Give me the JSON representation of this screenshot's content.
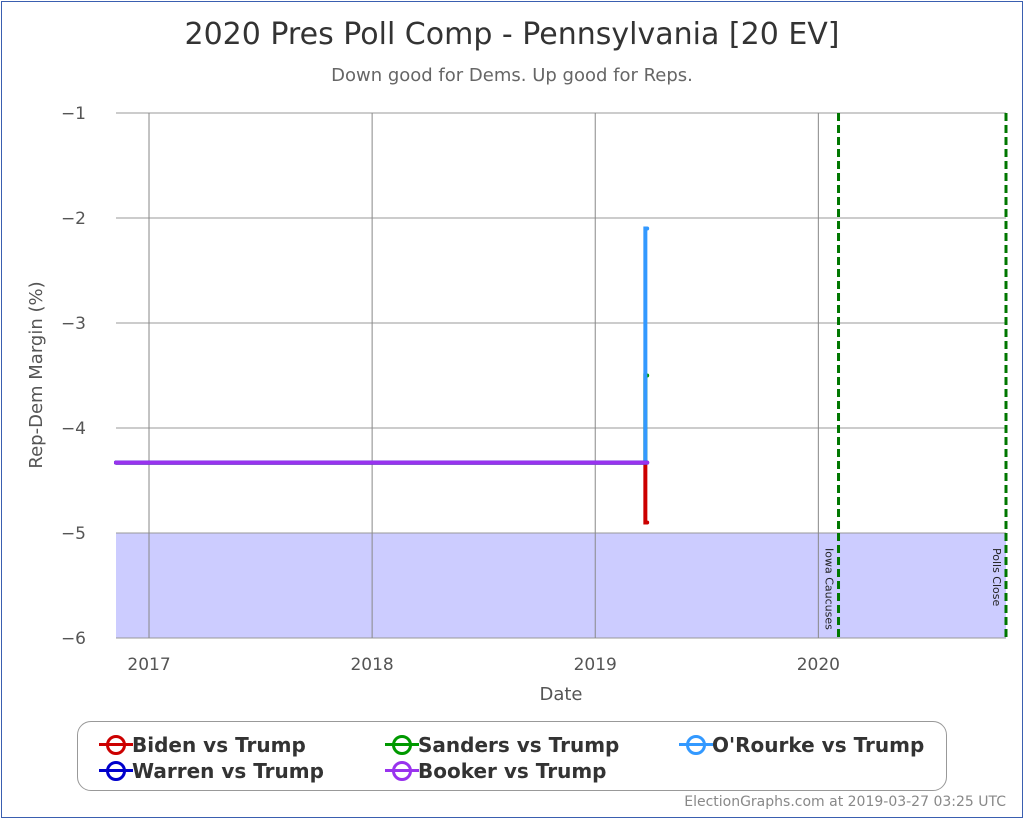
{
  "chart_data": {
    "type": "line",
    "title": "2020 Pres Poll Comp - Pennsylvania [20 EV]",
    "subtitle": "Down good for Dems. Up good for Reps.",
    "xlabel": "Date",
    "ylabel": "Rep-Dem Margin (%)",
    "xlim": [
      "2016-11-08",
      "2020-11-03"
    ],
    "ylim": [
      -6,
      -1
    ],
    "xticks": [
      "2017",
      "2018",
      "2019",
      "2020"
    ],
    "yticks": [
      -1,
      -2,
      -3,
      -4,
      -5,
      -6
    ],
    "grid": true,
    "shaded_region": {
      "from": -6,
      "to": -5,
      "color": "#ccccff"
    },
    "events": [
      {
        "date": "2020-02-03",
        "label": "Iowa Caucuses"
      },
      {
        "date": "2020-11-03",
        "label": "Polls Close"
      }
    ],
    "series": [
      {
        "name": "Biden vs Trump",
        "color": "#cc0000",
        "points": [
          [
            "2016-11-08",
            -4.33
          ],
          [
            "2019-03-24",
            -4.33
          ],
          [
            "2019-03-24",
            -4.9
          ],
          [
            "2019-03-27",
            -4.9
          ]
        ]
      },
      {
        "name": "Sanders vs Trump",
        "color": "#009900",
        "points": [
          [
            "2016-11-08",
            -4.33
          ],
          [
            "2019-03-24",
            -4.33
          ],
          [
            "2019-03-24",
            -3.5
          ],
          [
            "2019-03-27",
            -3.5
          ]
        ]
      },
      {
        "name": "O'Rourke vs Trump",
        "color": "#3399ff",
        "points": [
          [
            "2016-11-08",
            -4.33
          ],
          [
            "2019-03-24",
            -4.33
          ],
          [
            "2019-03-24",
            -2.1
          ],
          [
            "2019-03-27",
            -2.1
          ]
        ]
      },
      {
        "name": "Warren vs Trump",
        "color": "#0000cc",
        "points": [
          [
            "2016-11-08",
            -4.33
          ],
          [
            "2019-03-27",
            -4.33
          ]
        ]
      },
      {
        "name": "Booker vs Trump",
        "color": "#9933ee",
        "points": [
          [
            "2016-11-08",
            -4.33
          ],
          [
            "2019-03-27",
            -4.33
          ]
        ]
      }
    ],
    "legend_position": "bottom"
  },
  "footer": "ElectionGraphs.com at 2019-03-27 03:25 UTC"
}
